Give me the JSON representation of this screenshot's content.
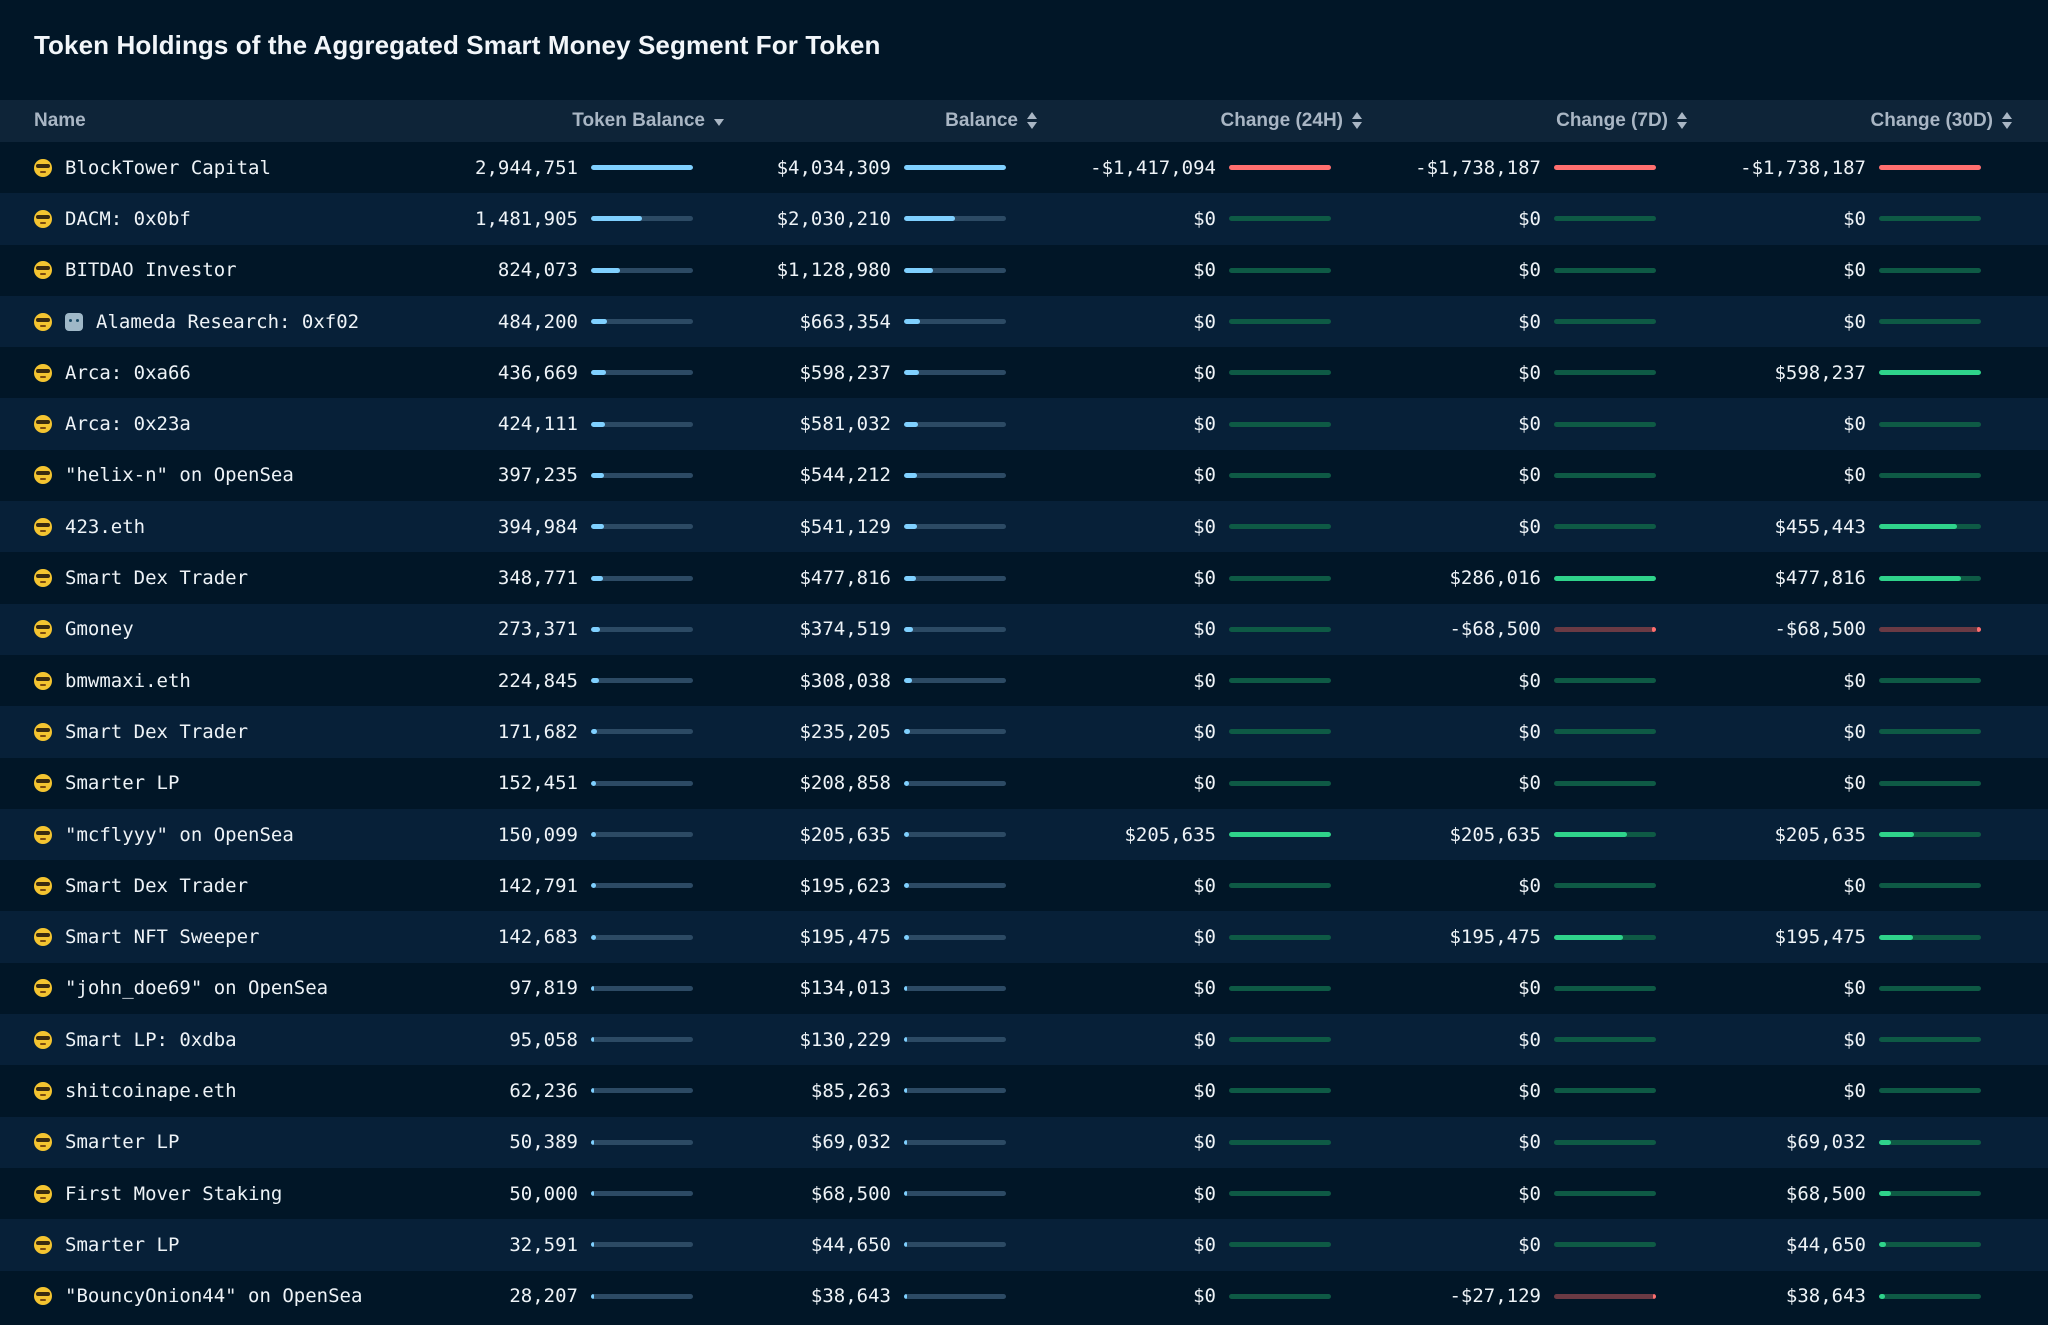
{
  "title": "Token Holdings of the Aggregated Smart Money Segment For Token",
  "columns": {
    "name": "Name",
    "token_balance": "Token Balance",
    "balance": "Balance",
    "change_24h": "Change (24H)",
    "change_7d": "Change (7D)",
    "change_30d": "Change (30D)"
  },
  "colors": {
    "background": "#011627",
    "row_alt": "#072038",
    "header": "#0e2438",
    "bar_blue": "#7fd0ff",
    "bar_green": "#2fd38b",
    "bar_red": "#ff6f6f"
  },
  "rows": [
    {
      "icon": "sunglasses-emoji",
      "name": "BlockTower Capital",
      "token_balance": "2,944,751",
      "token_frac": 1.0,
      "balance": "$4,034,309",
      "balance_frac": 1.0,
      "ch24": "-$1,417,094",
      "ch24_type": "redfull",
      "ch24_frac": 1.0,
      "ch7": "-$1,738,187",
      "ch7_type": "redfull",
      "ch7_frac": 1.0,
      "ch30": "-$1,738,187",
      "ch30_type": "redfull",
      "ch30_frac": 1.0
    },
    {
      "icon": "sunglasses-emoji",
      "name": "DACM: 0x0bf",
      "token_balance": "1,481,905",
      "token_frac": 0.5,
      "balance": "$2,030,210",
      "balance_frac": 0.5,
      "ch24": "$0",
      "ch24_type": "green",
      "ch24_frac": 0,
      "ch7": "$0",
      "ch7_type": "green",
      "ch7_frac": 0,
      "ch30": "$0",
      "ch30_type": "green",
      "ch30_frac": 0
    },
    {
      "icon": "sunglasses-emoji",
      "name": "BITDAO Investor",
      "token_balance": "824,073",
      "token_frac": 0.28,
      "balance": "$1,128,980",
      "balance_frac": 0.28,
      "ch24": "$0",
      "ch24_type": "green",
      "ch24_frac": 0,
      "ch7": "$0",
      "ch7_type": "green",
      "ch7_frac": 0,
      "ch30": "$0",
      "ch30_type": "green",
      "ch30_frac": 0
    },
    {
      "icon": "sunglasses-emoji",
      "icon2": "robot-icon",
      "name": "Alameda Research: 0xf02",
      "token_balance": "484,200",
      "token_frac": 0.16,
      "balance": "$663,354",
      "balance_frac": 0.16,
      "ch24": "$0",
      "ch24_type": "green",
      "ch24_frac": 0,
      "ch7": "$0",
      "ch7_type": "green",
      "ch7_frac": 0,
      "ch30": "$0",
      "ch30_type": "green",
      "ch30_frac": 0
    },
    {
      "icon": "sunglasses-emoji",
      "name": "Arca: 0xa66",
      "token_balance": "436,669",
      "token_frac": 0.15,
      "balance": "$598,237",
      "balance_frac": 0.15,
      "ch24": "$0",
      "ch24_type": "green",
      "ch24_frac": 0,
      "ch7": "$0",
      "ch7_type": "green",
      "ch7_frac": 0,
      "ch30": "$598,237",
      "ch30_type": "green",
      "ch30_frac": 1.0
    },
    {
      "icon": "sunglasses-emoji",
      "name": "Arca: 0x23a",
      "token_balance": "424,111",
      "token_frac": 0.14,
      "balance": "$581,032",
      "balance_frac": 0.14,
      "ch24": "$0",
      "ch24_type": "green",
      "ch24_frac": 0,
      "ch7": "$0",
      "ch7_type": "green",
      "ch7_frac": 0,
      "ch30": "$0",
      "ch30_type": "green",
      "ch30_frac": 0
    },
    {
      "icon": "sunglasses-emoji",
      "name": "\"helix-n\" on OpenSea",
      "token_balance": "397,235",
      "token_frac": 0.13,
      "balance": "$544,212",
      "balance_frac": 0.13,
      "ch24": "$0",
      "ch24_type": "green",
      "ch24_frac": 0,
      "ch7": "$0",
      "ch7_type": "green",
      "ch7_frac": 0,
      "ch30": "$0",
      "ch30_type": "green",
      "ch30_frac": 0
    },
    {
      "icon": "sunglasses-emoji",
      "name": "423.eth",
      "token_balance": "394,984",
      "token_frac": 0.13,
      "balance": "$541,129",
      "balance_frac": 0.13,
      "ch24": "$0",
      "ch24_type": "green",
      "ch24_frac": 0,
      "ch7": "$0",
      "ch7_type": "green",
      "ch7_frac": 0,
      "ch30": "$455,443",
      "ch30_type": "green",
      "ch30_frac": 0.76
    },
    {
      "icon": "sunglasses-emoji",
      "name": "Smart Dex Trader",
      "token_balance": "348,771",
      "token_frac": 0.12,
      "balance": "$477,816",
      "balance_frac": 0.12,
      "ch24": "$0",
      "ch24_type": "green",
      "ch24_frac": 0,
      "ch7": "$286,016",
      "ch7_type": "green",
      "ch7_frac": 1.0,
      "ch30": "$477,816",
      "ch30_type": "green",
      "ch30_frac": 0.8
    },
    {
      "icon": "sunglasses-emoji",
      "name": "Gmoney",
      "token_balance": "273,371",
      "token_frac": 0.09,
      "balance": "$374,519",
      "balance_frac": 0.09,
      "ch24": "$0",
      "ch24_type": "green",
      "ch24_frac": 0,
      "ch7": "-$68,500",
      "ch7_type": "red",
      "ch7_frac": 0.04,
      "ch30": "-$68,500",
      "ch30_type": "red",
      "ch30_frac": 0.04
    },
    {
      "icon": "sunglasses-emoji",
      "name": "bmwmaxi.eth",
      "token_balance": "224,845",
      "token_frac": 0.08,
      "balance": "$308,038",
      "balance_frac": 0.08,
      "ch24": "$0",
      "ch24_type": "green",
      "ch24_frac": 0,
      "ch7": "$0",
      "ch7_type": "green",
      "ch7_frac": 0,
      "ch30": "$0",
      "ch30_type": "green",
      "ch30_frac": 0
    },
    {
      "icon": "sunglasses-emoji",
      "name": "Smart Dex Trader",
      "token_balance": "171,682",
      "token_frac": 0.06,
      "balance": "$235,205",
      "balance_frac": 0.06,
      "ch24": "$0",
      "ch24_type": "green",
      "ch24_frac": 0,
      "ch7": "$0",
      "ch7_type": "green",
      "ch7_frac": 0,
      "ch30": "$0",
      "ch30_type": "green",
      "ch30_frac": 0
    },
    {
      "icon": "sunglasses-emoji",
      "name": "Smarter LP",
      "token_balance": "152,451",
      "token_frac": 0.05,
      "balance": "$208,858",
      "balance_frac": 0.05,
      "ch24": "$0",
      "ch24_type": "green",
      "ch24_frac": 0,
      "ch7": "$0",
      "ch7_type": "green",
      "ch7_frac": 0,
      "ch30": "$0",
      "ch30_type": "green",
      "ch30_frac": 0
    },
    {
      "icon": "sunglasses-emoji",
      "name": "\"mcflyyy\" on OpenSea",
      "token_balance": "150,099",
      "token_frac": 0.05,
      "balance": "$205,635",
      "balance_frac": 0.05,
      "ch24": "$205,635",
      "ch24_type": "green",
      "ch24_frac": 1.0,
      "ch7": "$205,635",
      "ch7_type": "green",
      "ch7_frac": 0.72,
      "ch30": "$205,635",
      "ch30_type": "green",
      "ch30_frac": 0.34
    },
    {
      "icon": "sunglasses-emoji",
      "name": "Smart Dex Trader",
      "token_balance": "142,791",
      "token_frac": 0.05,
      "balance": "$195,623",
      "balance_frac": 0.05,
      "ch24": "$0",
      "ch24_type": "green",
      "ch24_frac": 0,
      "ch7": "$0",
      "ch7_type": "green",
      "ch7_frac": 0,
      "ch30": "$0",
      "ch30_type": "green",
      "ch30_frac": 0
    },
    {
      "icon": "sunglasses-emoji",
      "name": "Smart NFT Sweeper",
      "token_balance": "142,683",
      "token_frac": 0.05,
      "balance": "$195,475",
      "balance_frac": 0.05,
      "ch24": "$0",
      "ch24_type": "green",
      "ch24_frac": 0,
      "ch7": "$195,475",
      "ch7_type": "green",
      "ch7_frac": 0.68,
      "ch30": "$195,475",
      "ch30_type": "green",
      "ch30_frac": 0.33
    },
    {
      "icon": "sunglasses-emoji",
      "name": "\"john_doe69\" on OpenSea",
      "token_balance": "97,819",
      "token_frac": 0.03,
      "balance": "$134,013",
      "balance_frac": 0.03,
      "ch24": "$0",
      "ch24_type": "green",
      "ch24_frac": 0,
      "ch7": "$0",
      "ch7_type": "green",
      "ch7_frac": 0,
      "ch30": "$0",
      "ch30_type": "green",
      "ch30_frac": 0
    },
    {
      "icon": "sunglasses-emoji",
      "name": "Smart LP: 0xdba",
      "token_balance": "95,058",
      "token_frac": 0.03,
      "balance": "$130,229",
      "balance_frac": 0.03,
      "ch24": "$0",
      "ch24_type": "green",
      "ch24_frac": 0,
      "ch7": "$0",
      "ch7_type": "green",
      "ch7_frac": 0,
      "ch30": "$0",
      "ch30_type": "green",
      "ch30_frac": 0
    },
    {
      "icon": "sunglasses-emoji",
      "name": "shitcoinape.eth",
      "token_balance": "62,236",
      "token_frac": 0.02,
      "balance": "$85,263",
      "balance_frac": 0.02,
      "ch24": "$0",
      "ch24_type": "green",
      "ch24_frac": 0,
      "ch7": "$0",
      "ch7_type": "green",
      "ch7_frac": 0,
      "ch30": "$0",
      "ch30_type": "green",
      "ch30_frac": 0
    },
    {
      "icon": "sunglasses-emoji",
      "name": "Smarter LP",
      "token_balance": "50,389",
      "token_frac": 0.015,
      "balance": "$69,032",
      "balance_frac": 0.015,
      "ch24": "$0",
      "ch24_type": "green",
      "ch24_frac": 0,
      "ch7": "$0",
      "ch7_type": "green",
      "ch7_frac": 0,
      "ch30": "$69,032",
      "ch30_type": "green",
      "ch30_frac": 0.12
    },
    {
      "icon": "sunglasses-emoji",
      "name": "First Mover Staking",
      "token_balance": "50,000",
      "token_frac": 0.015,
      "balance": "$68,500",
      "balance_frac": 0.015,
      "ch24": "$0",
      "ch24_type": "green",
      "ch24_frac": 0,
      "ch7": "$0",
      "ch7_type": "green",
      "ch7_frac": 0,
      "ch30": "$68,500",
      "ch30_type": "green",
      "ch30_frac": 0.12
    },
    {
      "icon": "sunglasses-emoji",
      "name": "Smarter LP",
      "token_balance": "32,591",
      "token_frac": 0.01,
      "balance": "$44,650",
      "balance_frac": 0.01,
      "ch24": "$0",
      "ch24_type": "green",
      "ch24_frac": 0,
      "ch7": "$0",
      "ch7_type": "green",
      "ch7_frac": 0,
      "ch30": "$44,650",
      "ch30_type": "green",
      "ch30_frac": 0.07
    },
    {
      "icon": "sunglasses-emoji",
      "name": "\"BouncyOnion44\" on OpenSea",
      "token_balance": "28,207",
      "token_frac": 0.01,
      "balance": "$38,643",
      "balance_frac": 0.01,
      "ch24": "$0",
      "ch24_type": "green",
      "ch24_frac": 0,
      "ch7": "-$27,129",
      "ch7_type": "red",
      "ch7_frac": 0.02,
      "ch30": "$38,643",
      "ch30_type": "green",
      "ch30_frac": 0.06
    }
  ]
}
